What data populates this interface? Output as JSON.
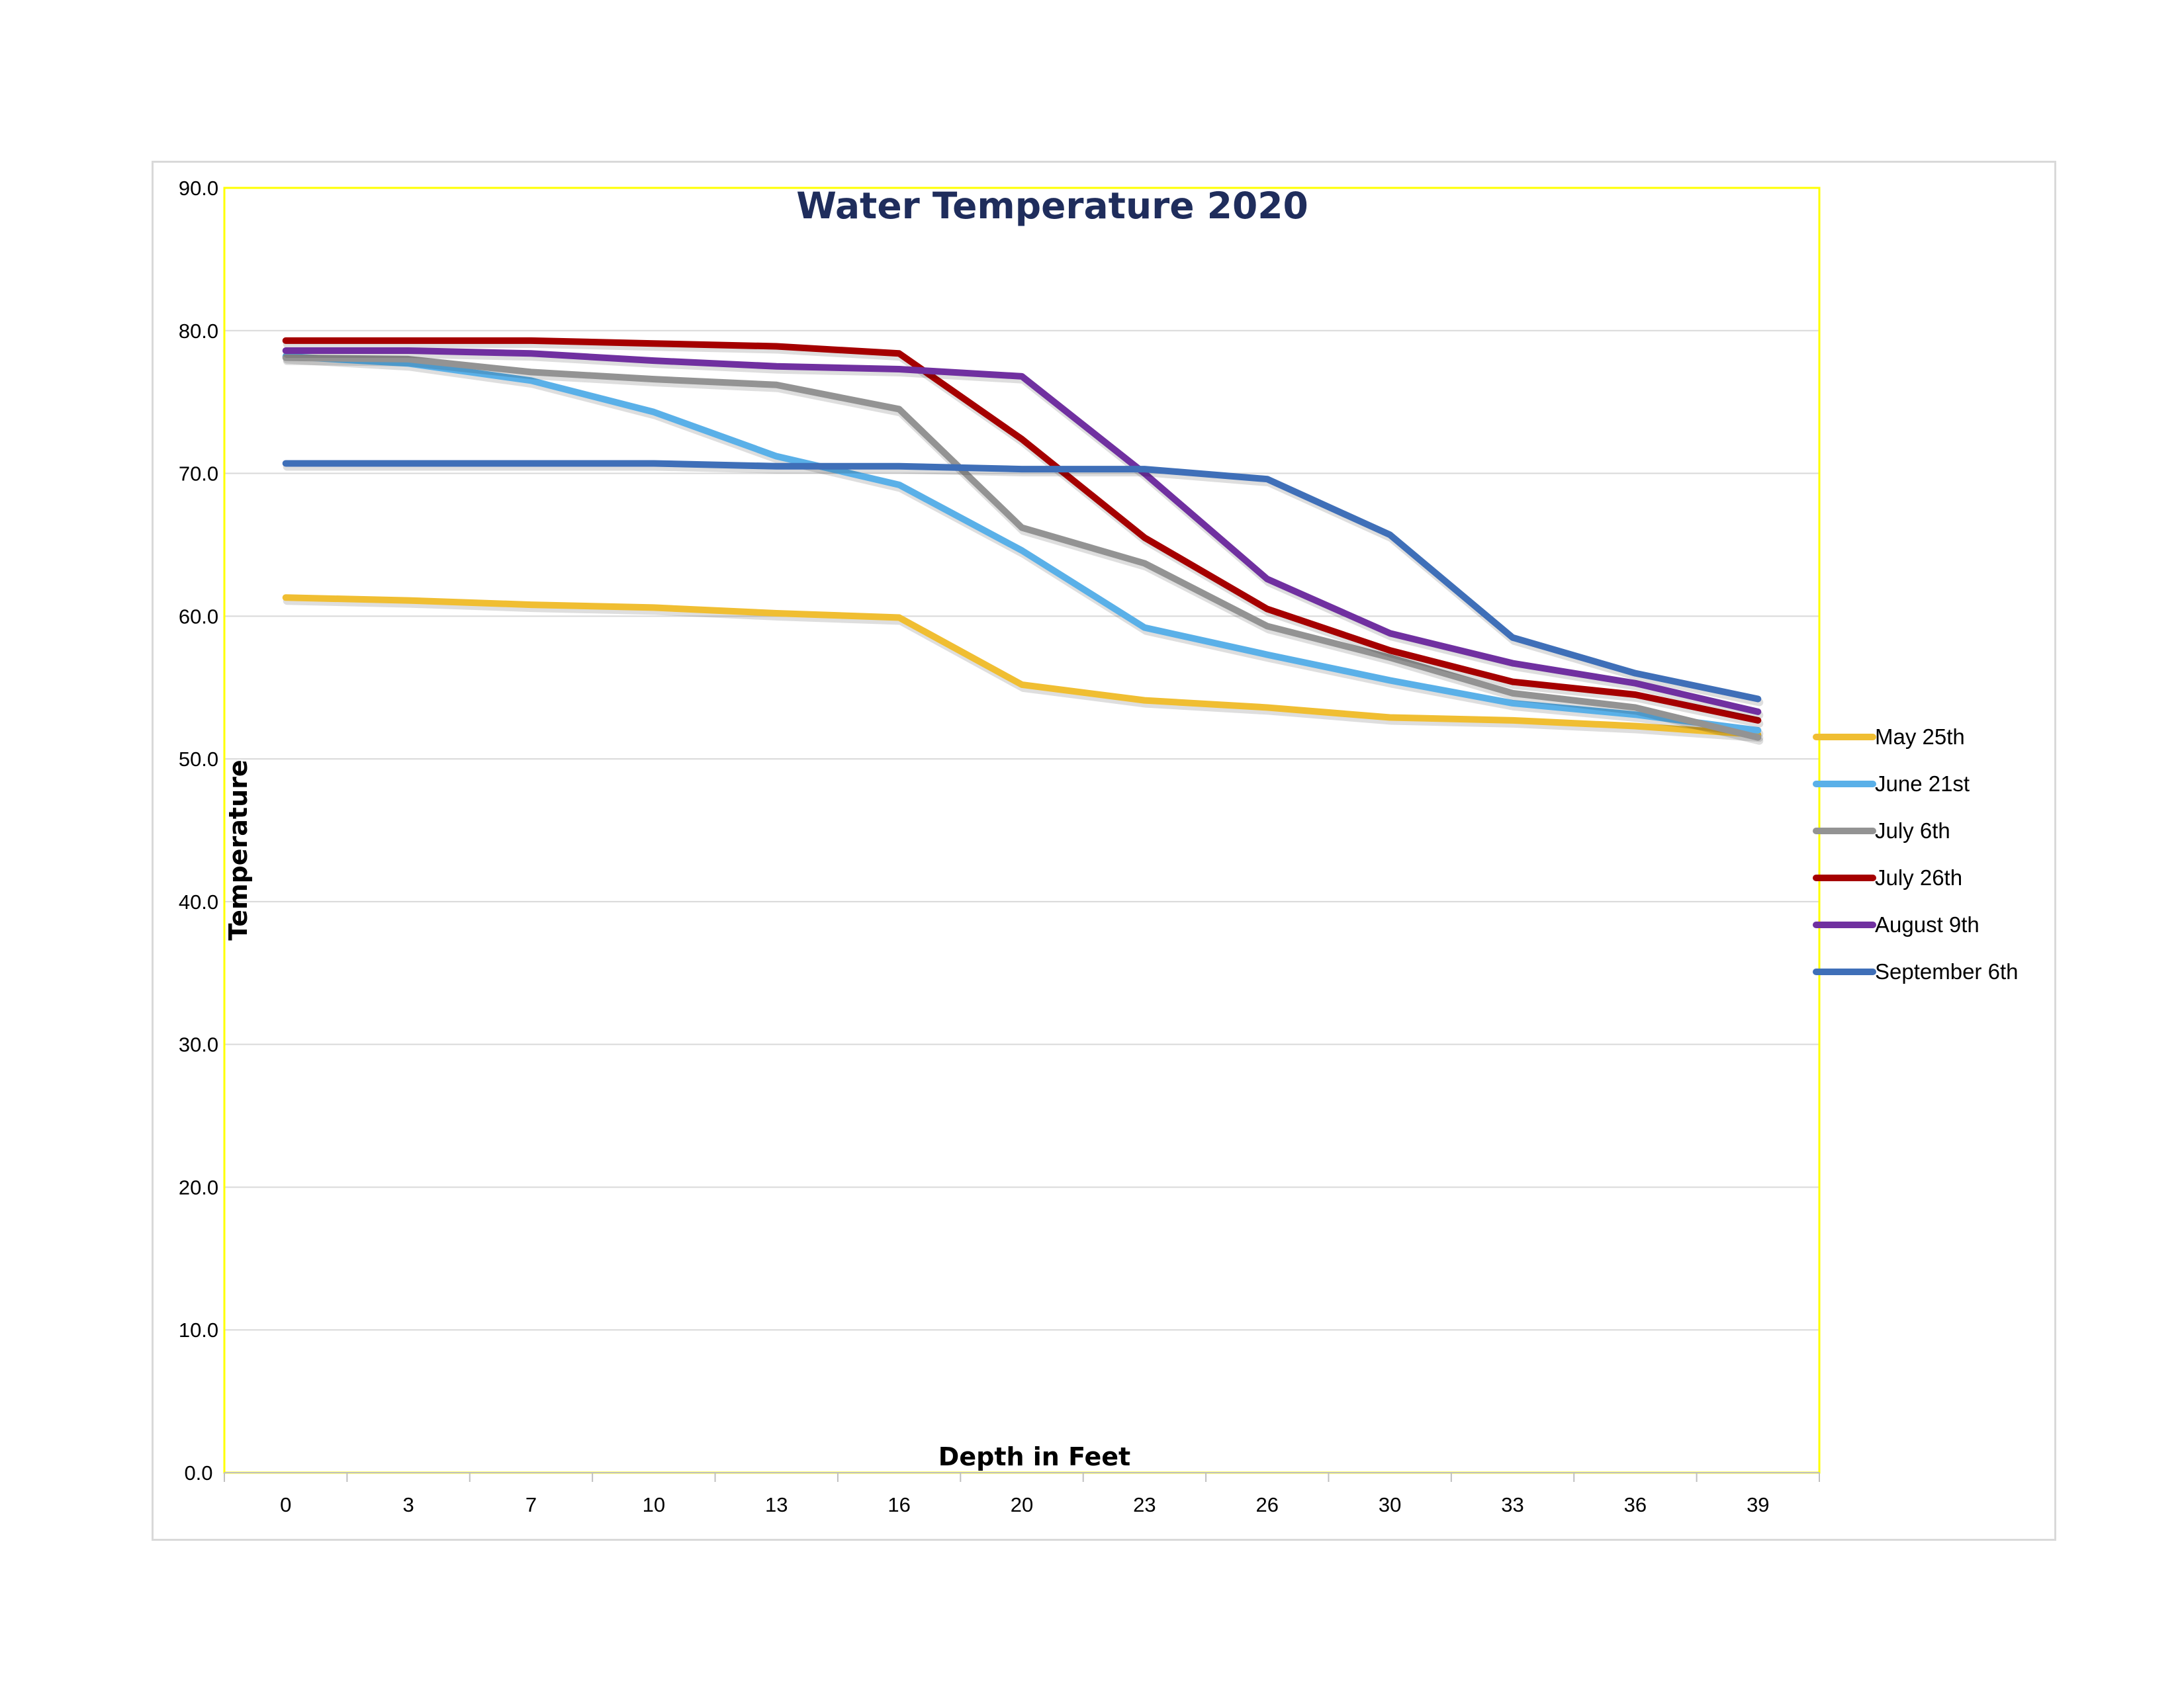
{
  "chart_data": {
    "type": "line",
    "title": "Water Temperature 2020",
    "xlabel": "Depth in Feet",
    "ylabel": "Temperature",
    "categories": [
      "0",
      "3",
      "7",
      "10",
      "13",
      "16",
      "20",
      "23",
      "26",
      "30",
      "33",
      "36",
      "39"
    ],
    "ylim": [
      0,
      90
    ],
    "yticks": [
      "0.0",
      "10.0",
      "20.0",
      "30.0",
      "40.0",
      "50.0",
      "60.0",
      "70.0",
      "80.0",
      "90.0"
    ],
    "grid": true,
    "legend_position": "right",
    "title_color": "#1f2d5c",
    "plot_border_color": "#ffff00",
    "series": [
      {
        "name": "May 25th",
        "color": "#f0be32",
        "values": [
          61.3,
          61.1,
          60.8,
          60.6,
          60.2,
          59.9,
          55.2,
          54.1,
          53.6,
          52.9,
          52.7,
          52.3,
          51.7
        ]
      },
      {
        "name": "June 21st",
        "color": "#5ab0e8",
        "values": [
          78.2,
          77.7,
          76.5,
          74.3,
          71.2,
          69.2,
          64.6,
          59.2,
          57.3,
          55.5,
          53.9,
          53.1,
          52.0
        ]
      },
      {
        "name": "July 6th",
        "color": "#939393",
        "values": [
          78.1,
          78.0,
          77.1,
          76.6,
          76.2,
          74.5,
          66.2,
          63.7,
          59.3,
          57.1,
          54.6,
          53.6,
          51.5
        ]
      },
      {
        "name": "July 26th",
        "color": "#a50000",
        "values": [
          79.3,
          79.3,
          79.3,
          79.1,
          78.9,
          78.4,
          72.4,
          65.5,
          60.5,
          57.6,
          55.4,
          54.5,
          52.7
        ]
      },
      {
        "name": "August 9th",
        "color": "#7030a0",
        "values": [
          78.6,
          78.6,
          78.4,
          77.9,
          77.5,
          77.3,
          76.8,
          70.0,
          62.6,
          58.8,
          56.7,
          55.3,
          53.3
        ]
      },
      {
        "name": "September 6th",
        "color": "#3f6fb8",
        "values": [
          70.7,
          70.7,
          70.7,
          70.7,
          70.5,
          70.5,
          70.3,
          70.3,
          69.6,
          65.7,
          58.5,
          56.0,
          54.2
        ]
      }
    ]
  }
}
